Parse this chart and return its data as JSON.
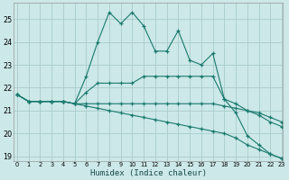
{
  "xlabel": "Humidex (Indice chaleur)",
  "background_color": "#cce8e8",
  "line_color": "#1a7a6e",
  "grid_color": "#aacccc",
  "xlim": [
    0,
    23
  ],
  "ylim": [
    18.8,
    25.7
  ],
  "yticks": [
    19,
    20,
    21,
    22,
    23,
    24,
    25
  ],
  "xticks": [
    0,
    1,
    2,
    3,
    4,
    5,
    6,
    7,
    8,
    9,
    10,
    11,
    12,
    13,
    14,
    15,
    16,
    17,
    18,
    19,
    20,
    21,
    22,
    23
  ],
  "series": [
    [
      21.7,
      21.4,
      21.4,
      21.4,
      21.4,
      21.3,
      22.5,
      24.0,
      25.3,
      24.8,
      25.3,
      24.7,
      23.6,
      23.6,
      24.5,
      23.2,
      23.0,
      23.5,
      21.5,
      20.9,
      19.9,
      19.5,
      19.1,
      18.9
    ],
    [
      21.7,
      21.4,
      21.4,
      21.4,
      21.4,
      21.3,
      21.8,
      22.2,
      22.2,
      22.2,
      22.2,
      22.5,
      22.5,
      22.5,
      22.5,
      22.5,
      22.5,
      22.5,
      21.5,
      21.3,
      21.0,
      20.8,
      20.5,
      20.3
    ],
    [
      21.7,
      21.4,
      21.4,
      21.4,
      21.4,
      21.3,
      21.3,
      21.3,
      21.3,
      21.3,
      21.3,
      21.3,
      21.3,
      21.3,
      21.3,
      21.3,
      21.3,
      21.3,
      21.2,
      21.1,
      21.0,
      20.9,
      20.7,
      20.5
    ],
    [
      21.7,
      21.4,
      21.4,
      21.4,
      21.4,
      21.3,
      21.2,
      21.1,
      21.0,
      20.9,
      20.8,
      20.7,
      20.6,
      20.5,
      20.4,
      20.3,
      20.2,
      20.1,
      20.0,
      19.8,
      19.5,
      19.3,
      19.1,
      18.9
    ]
  ]
}
